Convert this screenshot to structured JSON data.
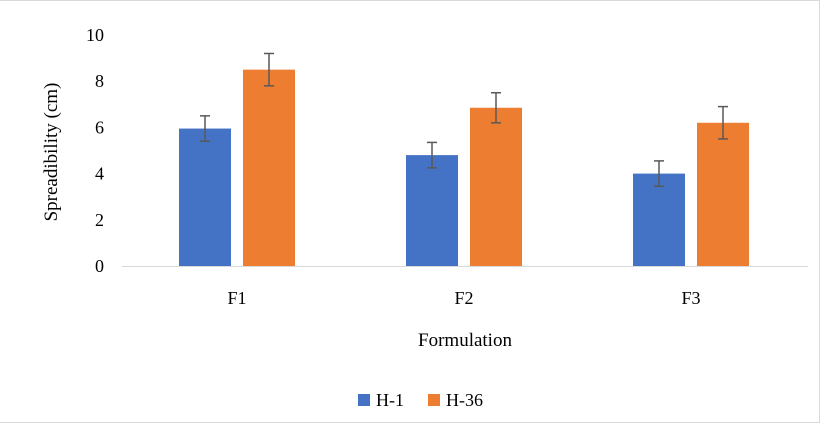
{
  "chart_data": {
    "type": "bar",
    "categories": [
      "F1",
      "F2",
      "F3"
    ],
    "series": [
      {
        "name": "H-1",
        "color": "#4472c4",
        "values": [
          5.95,
          4.8,
          4.0
        ],
        "errors": [
          0.55,
          0.55,
          0.55
        ]
      },
      {
        "name": "H-36",
        "color": "#ed7d31",
        "values": [
          8.5,
          6.85,
          6.2
        ],
        "errors": [
          0.7,
          0.65,
          0.7
        ]
      }
    ],
    "title": "",
    "xlabel": "Formulation",
    "ylabel": "Spreadibility (cm)",
    "ylim": [
      0,
      10
    ],
    "yticks": [
      0,
      2,
      4,
      6,
      8,
      10
    ],
    "grid": false,
    "legend_position": "bottom",
    "error_bar_color": "#595959",
    "axis_color": "#d9d9d9"
  }
}
